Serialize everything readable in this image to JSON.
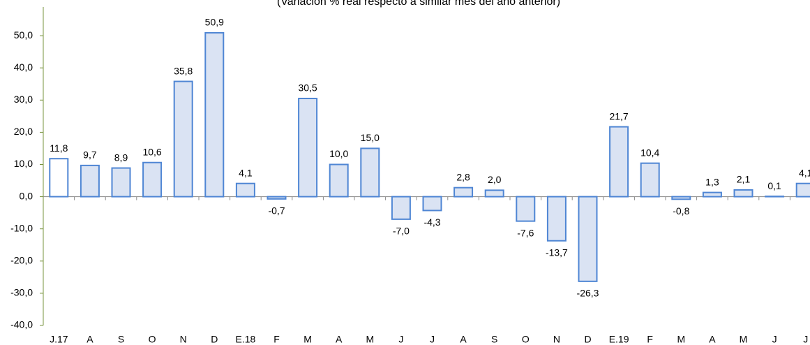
{
  "chart_data": {
    "type": "bar",
    "title": "(Variación % real respecto a similar mes del año anterior)",
    "categories": [
      "J.17",
      "A",
      "S",
      "O",
      "N",
      "D",
      "E.18",
      "F",
      "M",
      "A",
      "M",
      "J",
      "J",
      "A",
      "S",
      "O",
      "N",
      "D",
      "E.19",
      "F",
      "M",
      "A",
      "M",
      "J",
      "J"
    ],
    "values": [
      11.8,
      9.7,
      8.9,
      10.6,
      35.8,
      50.9,
      4.1,
      -0.7,
      30.5,
      10.0,
      15.0,
      -7.0,
      -4.3,
      2.8,
      2.0,
      -7.6,
      -13.7,
      -26.3,
      21.7,
      10.4,
      -0.8,
      1.3,
      2.1,
      0.1,
      4.1
    ],
    "value_labels": [
      "11,8",
      "9,7",
      "8,9",
      "10,6",
      "35,8",
      "50,9",
      "4,1",
      "-0,7",
      "30,5",
      "10,0",
      "15,0",
      "-7,0",
      "-4,3",
      "2,8",
      "2,0",
      "-7,6",
      "-13,7",
      "-26,3",
      "21,7",
      "10,4",
      "-0,8",
      "1,3",
      "2,1",
      "0,1",
      "4,1"
    ],
    "colors": [
      "#ffffff",
      "#dae3f3",
      "#dae3f3",
      "#dae3f3",
      "#dae3f3",
      "#dae3f3",
      "#dae3f3",
      "#dae3f3",
      "#dae3f3",
      "#dae3f3",
      "#dae3f3",
      "#dae3f3",
      "#dae3f3",
      "#dae3f3",
      "#dae3f3",
      "#dae3f3",
      "#dae3f3",
      "#dae3f3",
      "#dae3f3",
      "#dae3f3",
      "#dae3f3",
      "#dae3f3",
      "#dae3f3",
      "#dae3f3",
      "#dae3f3"
    ],
    "stroke": "#4f86d4",
    "ylim": [
      -40,
      60
    ],
    "yticks": [
      {
        "value": -40,
        "label": "-40,0"
      },
      {
        "value": -30,
        "label": "-30,0"
      },
      {
        "value": -20,
        "label": "-20,0"
      },
      {
        "value": -10,
        "label": "-10,0"
      },
      {
        "value": 0,
        "label": "0,0"
      },
      {
        "value": 10,
        "label": "10,0"
      },
      {
        "value": 20,
        "label": "20,0"
      },
      {
        "value": 30,
        "label": "30,0"
      },
      {
        "value": 40,
        "label": "40,0"
      },
      {
        "value": 50,
        "label": "50,0"
      }
    ],
    "grid": false
  }
}
